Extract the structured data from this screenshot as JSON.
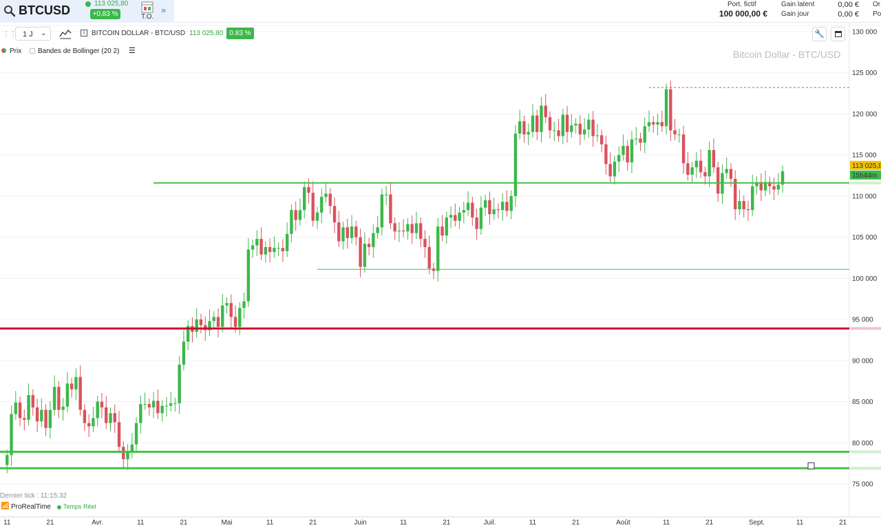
{
  "header": {
    "symbol": "BTCUSD",
    "last_price": "113 025,80",
    "change": "+0,83 %",
    "to_label": "T.O.",
    "port_label": "Port. fictif",
    "port_value": "100 000,00 €",
    "gain_latent_label": "Gain latent",
    "gain_jour_label": "Gain jour",
    "gain_latent_value": "0,00 €",
    "gain_jour_value": "0,00 €",
    "cut_label_1": "Or",
    "cut_label_2": "Po"
  },
  "toolbar": {
    "period": "1 J",
    "instrument": "BITCOIN DOLLAR - BTC/USD",
    "price": "113 025,80",
    "change": "0.83 %"
  },
  "legend": {
    "prix": "Prix",
    "bollinger": "Bandes de Bollinger (20 2)"
  },
  "colors": {
    "up": "#3cb84a",
    "down": "#d9525e",
    "support": "#45c045",
    "resistance": "#c8102e",
    "price_tag": "#f2c200",
    "timer_tag": "#3cb84a"
  },
  "chart_data": {
    "type": "candlestick",
    "title": "Bitcoin Dollar - BTC/USD",
    "price_tag": "113 025,8",
    "timer_tag": "15h44m",
    "ylim": [
      72500,
      130500
    ],
    "yticks": [
      75000,
      80000,
      85000,
      90000,
      95000,
      100000,
      105000,
      110000,
      115000,
      120000,
      125000,
      130000
    ],
    "ytick_labels": [
      "75 000",
      "80 000",
      "85 000",
      "90 000",
      "95 000",
      "100 000",
      "105 000",
      "110 000",
      "115 000",
      "120 000",
      "125 000",
      "130 000"
    ],
    "x_start_index": -1,
    "x_step": 1,
    "xtick_labels": [
      {
        "i": 0,
        "label": "11"
      },
      {
        "i": 10,
        "label": "21"
      },
      {
        "i": 21,
        "label": "Avr."
      },
      {
        "i": 31,
        "label": "11"
      },
      {
        "i": 41,
        "label": "21"
      },
      {
        "i": 51,
        "label": "Mai"
      },
      {
        "i": 61,
        "label": "11"
      },
      {
        "i": 71,
        "label": "21"
      },
      {
        "i": 82,
        "label": "Juin"
      },
      {
        "i": 92,
        "label": "11"
      },
      {
        "i": 102,
        "label": "21"
      },
      {
        "i": 112,
        "label": "Juil."
      },
      {
        "i": 122,
        "label": "11"
      },
      {
        "i": 132,
        "label": "21"
      },
      {
        "i": 143,
        "label": "Août"
      },
      {
        "i": 153,
        "label": "11"
      },
      {
        "i": 163,
        "label": "21"
      },
      {
        "i": 174,
        "label": "Sept."
      },
      {
        "i": 184,
        "label": "11"
      },
      {
        "i": 194,
        "label": "21"
      }
    ],
    "levels": [
      {
        "price": 111600,
        "color": "#45c045",
        "width": 2,
        "from_i": 34,
        "style": "solid"
      },
      {
        "price": 101100,
        "color": "#45c045",
        "width": 1,
        "from_i": 72,
        "style": "solid"
      },
      {
        "price": 93900,
        "color": "#c8102e",
        "width": 3,
        "from_i": -1,
        "style": "solid"
      },
      {
        "price": 78900,
        "color": "#45c045",
        "width": 3,
        "from_i": -1,
        "style": "solid"
      },
      {
        "price": 76900,
        "color": "#45c045",
        "width": 3,
        "from_i": -1,
        "style": "solid"
      },
      {
        "price": 123200,
        "color": "#d9525e",
        "width": 1,
        "from_i": 149,
        "style": "dashed"
      }
    ],
    "closes": [
      78500,
      83500,
      84900,
      83000,
      82800,
      85800,
      84300,
      82600,
      84000,
      81800,
      84000,
      86800,
      84000,
      84400,
      87200,
      86500,
      88000,
      84000,
      82400,
      82000,
      83000,
      85000,
      84300,
      82400,
      83600,
      82500,
      79500,
      78000,
      78800,
      79800,
      82400,
      84700,
      84700,
      84300,
      85100,
      83600,
      84500,
      84500,
      84800,
      84800,
      89500,
      92300,
      94200,
      93500,
      95000,
      94300,
      93700,
      94800,
      95300,
      94100,
      96700,
      97000,
      95300,
      94100,
      96400,
      97200,
      103500,
      104000,
      104800,
      102900,
      103800,
      103200,
      103700,
      103700,
      103300,
      105400,
      108300,
      107100,
      108300,
      111100,
      110400,
      107000,
      108000,
      109900,
      110300,
      108800,
      106800,
      104500,
      106200,
      104900,
      106300,
      105000,
      101400,
      104200,
      103800,
      105500,
      106200,
      110200,
      110200,
      106700,
      105700,
      105800,
      105700,
      106600,
      105500,
      106700,
      104800,
      103800,
      101200,
      100900,
      106300,
      105200,
      107400,
      107700,
      107000,
      108000,
      108300,
      109200,
      107400,
      106000,
      108600,
      109500,
      107800,
      108400,
      108300,
      109300,
      108200,
      110000,
      117600,
      119100,
      117500,
      117800,
      119800,
      117800,
      121000,
      119600,
      118000,
      118000,
      117300,
      119900,
      117800,
      118600,
      118800,
      117500,
      118100,
      119300,
      117300,
      117400,
      116300,
      113900,
      112400,
      114200,
      115000,
      116100,
      114100,
      116900,
      117000,
      116500,
      118500,
      119000,
      118700,
      119000,
      118500,
      123000,
      118000,
      117500,
      117500,
      114000,
      112600,
      113500,
      114300,
      112900,
      112400,
      115600,
      113500,
      110300,
      112800,
      113300,
      112100,
      108400,
      109400,
      108400,
      108300,
      111200,
      111700,
      110700,
      111700,
      111200,
      110800,
      111400,
      113026
    ],
    "x_axis_extends_to_i": 195
  },
  "footer": {
    "last_tick": "Dernier tick : 11:15:32",
    "provider": "ProRealTime",
    "realtime": "Temps Réel"
  }
}
